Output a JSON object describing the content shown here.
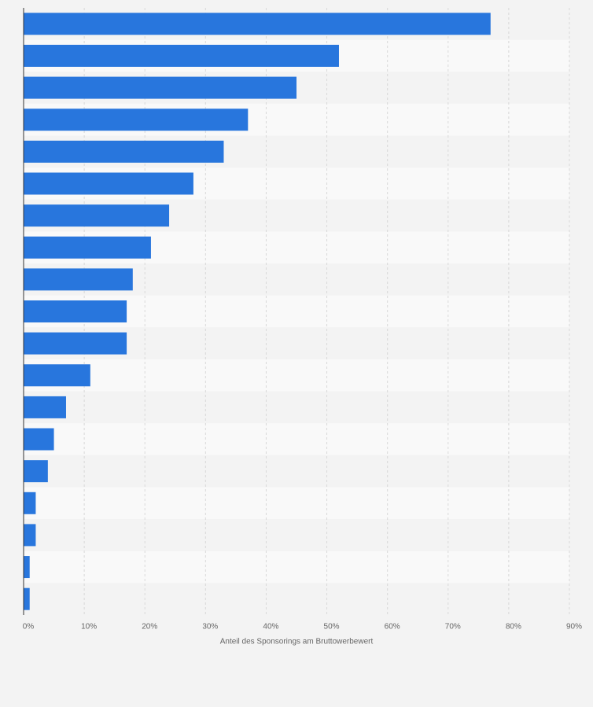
{
  "chart_data": {
    "type": "bar",
    "orientation": "horizontal",
    "x_label": "Anteil des Sponsorings am Bruttowerbewert",
    "categories": [
      null,
      null,
      null,
      null,
      null,
      null,
      null,
      null,
      null,
      null,
      null,
      null,
      null,
      null,
      null,
      null,
      null,
      null,
      null
    ],
    "values": [
      77,
      52,
      45,
      37,
      33,
      28,
      24,
      21,
      18,
      17,
      17,
      11,
      7,
      5,
      4,
      2,
      2,
      1,
      1
    ],
    "color": "#2876dd",
    "xlim": [
      0,
      90
    ],
    "xticks": [
      {
        "value": 0,
        "label": "0%"
      },
      {
        "value": 10,
        "label": "10%"
      },
      {
        "value": 20,
        "label": "20%"
      },
      {
        "value": 30,
        "label": "30%"
      },
      {
        "value": 40,
        "label": "40%"
      },
      {
        "value": 50,
        "label": "50%"
      },
      {
        "value": 60,
        "label": "60%"
      },
      {
        "value": 70,
        "label": "70%"
      },
      {
        "value": 80,
        "label": "80%"
      },
      {
        "value": 90,
        "label": "90%"
      }
    ],
    "grid": true
  }
}
